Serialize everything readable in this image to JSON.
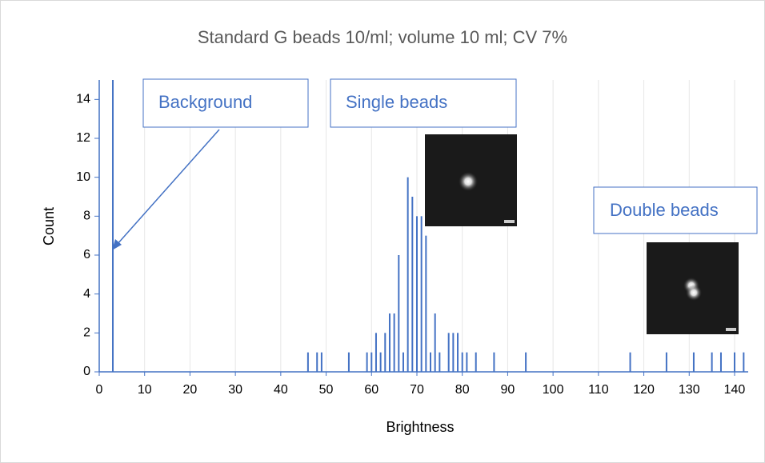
{
  "chart_data": {
    "type": "bar",
    "title": "Standard G beads 10/ml; volume 10 ml; CV 7%",
    "x_label": "Brightness",
    "y_label": "Count",
    "annotations": [
      "Background",
      "Single beads",
      "Double beads"
    ],
    "x": [
      3,
      46,
      48,
      49,
      55,
      59,
      60,
      61,
      62,
      63,
      64,
      65,
      66,
      67,
      68,
      69,
      70,
      71,
      72,
      73,
      74,
      75,
      77,
      78,
      79,
      80,
      81,
      83,
      87,
      94,
      117,
      125,
      131,
      135,
      137,
      140,
      142
    ],
    "values": [
      15,
      1,
      1,
      1,
      1,
      1,
      1,
      2,
      1,
      2,
      3,
      3,
      6,
      1,
      10,
      9,
      8,
      8,
      7,
      1,
      3,
      1,
      2,
      2,
      2,
      1,
      1,
      1,
      1,
      1,
      1,
      1,
      1,
      1,
      1,
      1,
      1
    ],
    "color": "#4472c4",
    "xlim": [
      0,
      143
    ],
    "xticks": [
      0,
      10,
      20,
      30,
      40,
      50,
      60,
      70,
      80,
      90,
      100,
      110,
      120,
      130,
      140
    ],
    "ylim": [
      0,
      15
    ],
    "yticks": [
      0,
      2,
      4,
      6,
      8,
      10,
      12,
      14
    ],
    "grid": true
  }
}
